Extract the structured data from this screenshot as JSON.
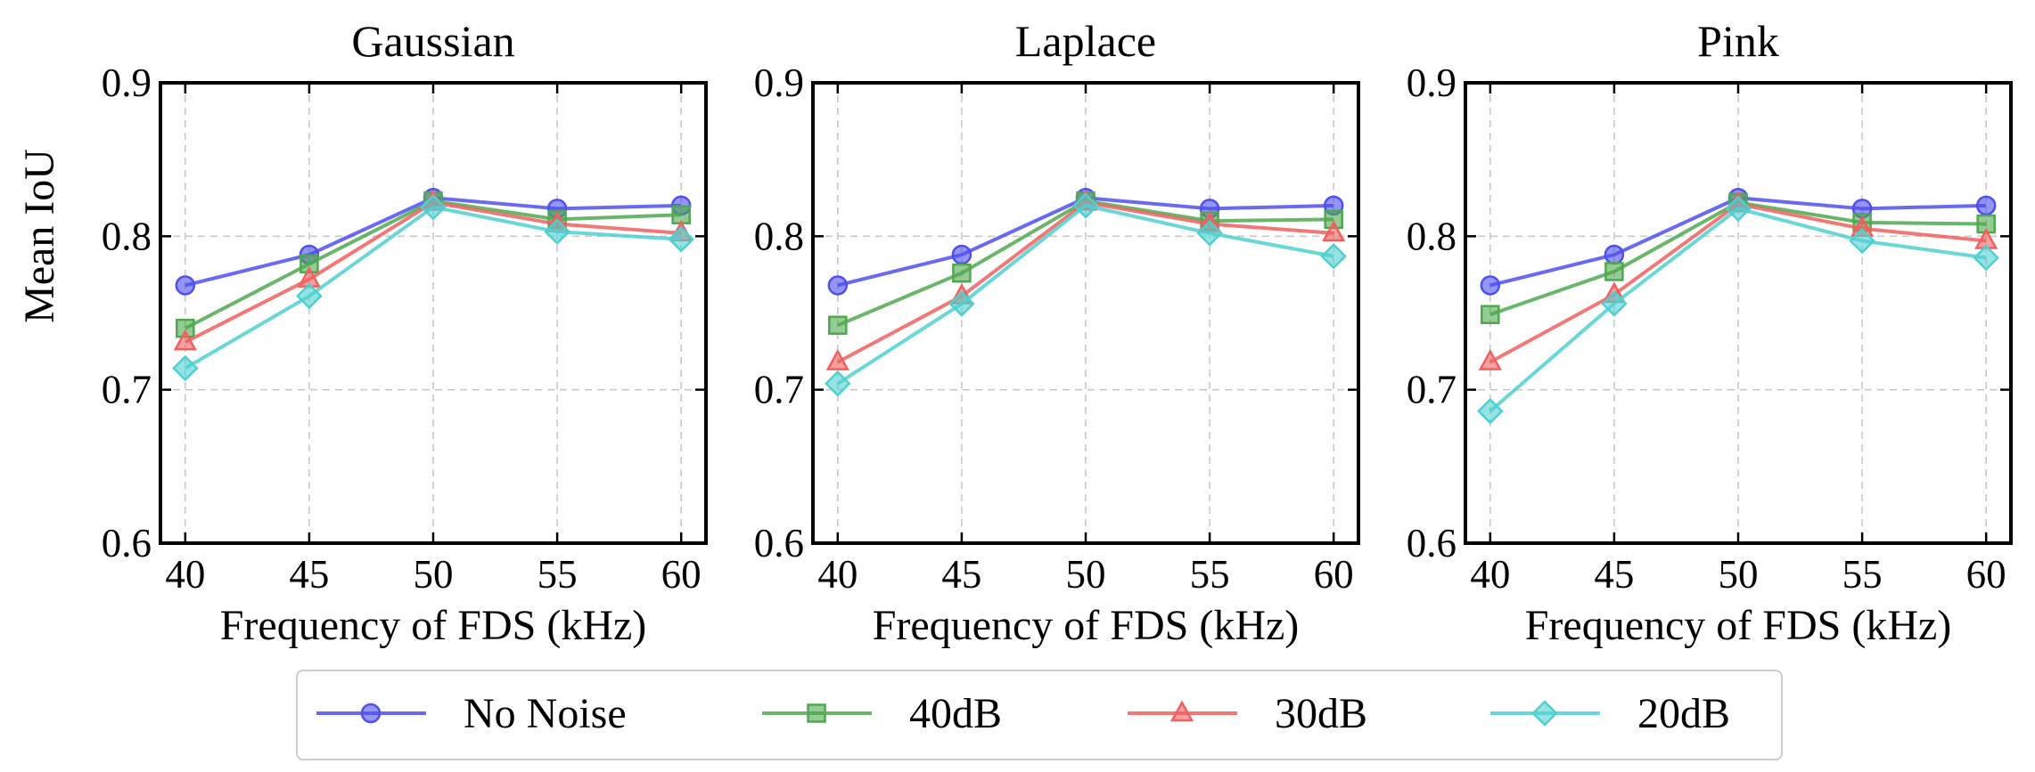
{
  "figure": {
    "ylabel": "Mean IoU"
  },
  "legend": {
    "placement": "bottom-center",
    "entries": [
      {
        "label": "No Noise",
        "color": "#4f4ff0",
        "marker": "circle"
      },
      {
        "label": "40dB",
        "color": "#4fa84f",
        "marker": "square"
      },
      {
        "label": "30dB",
        "color": "#f06060",
        "marker": "triangle"
      },
      {
        "label": "20dB",
        "color": "#4fd0d0",
        "marker": "diamond"
      }
    ]
  },
  "chart_data": [
    {
      "type": "line",
      "title": "Gaussian",
      "xlabel": "Frequency of FDS (kHz)",
      "ylabel": "Mean IoU",
      "x": [
        40,
        45,
        50,
        55,
        60
      ],
      "xticks": [
        "40",
        "45",
        "50",
        "55",
        "60"
      ],
      "yticks": [
        "0.6",
        "0.7",
        "0.8",
        "0.9"
      ],
      "xlim": [
        39,
        61
      ],
      "ylim": [
        0.6,
        0.9
      ],
      "grid": true,
      "series": [
        {
          "name": "No Noise",
          "color": "#4f4ff0",
          "marker": "circle",
          "values": [
            0.768,
            0.788,
            0.825,
            0.818,
            0.82
          ]
        },
        {
          "name": "40dB",
          "color": "#4fa84f",
          "marker": "square",
          "values": [
            0.74,
            0.782,
            0.823,
            0.811,
            0.814
          ]
        },
        {
          "name": "30dB",
          "color": "#f06060",
          "marker": "triangle",
          "values": [
            0.731,
            0.772,
            0.822,
            0.808,
            0.802
          ]
        },
        {
          "name": "20dB",
          "color": "#4fd0d0",
          "marker": "diamond",
          "values": [
            0.714,
            0.761,
            0.819,
            0.803,
            0.798
          ]
        }
      ]
    },
    {
      "type": "line",
      "title": "Laplace",
      "xlabel": "Frequency of FDS (kHz)",
      "ylabel": "",
      "x": [
        40,
        45,
        50,
        55,
        60
      ],
      "xticks": [
        "40",
        "45",
        "50",
        "55",
        "60"
      ],
      "yticks": [
        "0.6",
        "0.7",
        "0.8",
        "0.9"
      ],
      "xlim": [
        39,
        61
      ],
      "ylim": [
        0.6,
        0.9
      ],
      "grid": true,
      "series": [
        {
          "name": "No Noise",
          "color": "#4f4ff0",
          "marker": "circle",
          "values": [
            0.768,
            0.788,
            0.825,
            0.818,
            0.82
          ]
        },
        {
          "name": "40dB",
          "color": "#4fa84f",
          "marker": "square",
          "values": [
            0.742,
            0.776,
            0.823,
            0.81,
            0.811
          ]
        },
        {
          "name": "30dB",
          "color": "#f06060",
          "marker": "triangle",
          "values": [
            0.718,
            0.761,
            0.822,
            0.808,
            0.802
          ]
        },
        {
          "name": "20dB",
          "color": "#4fd0d0",
          "marker": "diamond",
          "values": [
            0.704,
            0.756,
            0.82,
            0.802,
            0.787
          ]
        }
      ]
    },
    {
      "type": "line",
      "title": "Pink",
      "xlabel": "Frequency of FDS (kHz)",
      "ylabel": "",
      "x": [
        40,
        45,
        50,
        55,
        60
      ],
      "xticks": [
        "40",
        "45",
        "50",
        "55",
        "60"
      ],
      "yticks": [
        "0.6",
        "0.7",
        "0.8",
        "0.9"
      ],
      "xlim": [
        39,
        61
      ],
      "ylim": [
        0.6,
        0.9
      ],
      "grid": true,
      "series": [
        {
          "name": "No Noise",
          "color": "#4f4ff0",
          "marker": "circle",
          "values": [
            0.768,
            0.788,
            0.825,
            0.818,
            0.82
          ]
        },
        {
          "name": "40dB",
          "color": "#4fa84f",
          "marker": "square",
          "values": [
            0.749,
            0.777,
            0.822,
            0.809,
            0.808
          ]
        },
        {
          "name": "30dB",
          "color": "#f06060",
          "marker": "triangle",
          "values": [
            0.718,
            0.762,
            0.821,
            0.805,
            0.797
          ]
        },
        {
          "name": "20dB",
          "color": "#4fd0d0",
          "marker": "diamond",
          "values": [
            0.686,
            0.756,
            0.818,
            0.797,
            0.786
          ]
        }
      ]
    }
  ]
}
